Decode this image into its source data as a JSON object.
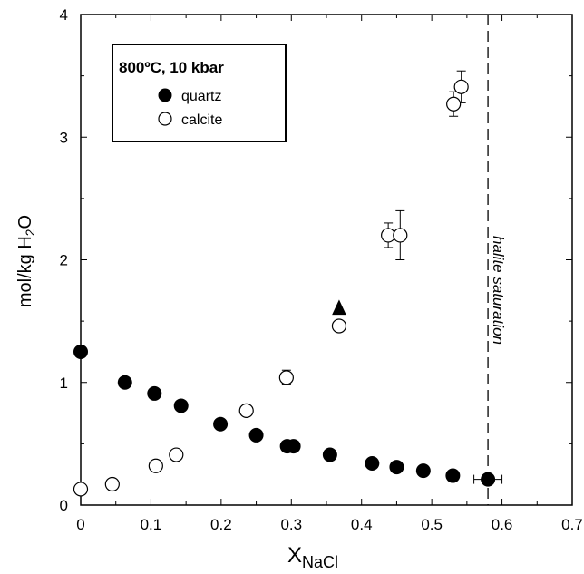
{
  "chart_data": {
    "type": "scatter",
    "ylabel": "mol/kg H",
    "ylabel_sub": "2",
    "ylabel_tail": "O",
    "xlabel": "X",
    "xlabel_sub": "NaCl",
    "xlim": [
      0,
      0.7
    ],
    "ylim": [
      0,
      4
    ],
    "xticks": [
      "0",
      "0.1",
      "0.2",
      "0.3",
      "0.4",
      "0.5",
      "0.6",
      "0.7"
    ],
    "yticks": [
      "0",
      "1",
      "2",
      "3",
      "4"
    ],
    "grid": false,
    "legend": {
      "placement": "top-left",
      "title": "800ºC, 10 kbar",
      "entries": [
        {
          "label": "quartz",
          "marker": "filled-circle"
        },
        {
          "label": "calcite",
          "marker": "open-circle"
        }
      ]
    },
    "series": [
      {
        "name": "quartz",
        "marker": "filled-circle",
        "points": [
          {
            "x": 0.0,
            "y": 1.25
          },
          {
            "x": 0.063,
            "y": 1.0
          },
          {
            "x": 0.105,
            "y": 0.91
          },
          {
            "x": 0.143,
            "y": 0.81
          },
          {
            "x": 0.199,
            "y": 0.66
          },
          {
            "x": 0.25,
            "y": 0.57
          },
          {
            "x": 0.294,
            "y": 0.48
          },
          {
            "x": 0.303,
            "y": 0.48
          },
          {
            "x": 0.355,
            "y": 0.41
          },
          {
            "x": 0.415,
            "y": 0.34
          },
          {
            "x": 0.45,
            "y": 0.31
          },
          {
            "x": 0.488,
            "y": 0.28
          },
          {
            "x": 0.53,
            "y": 0.24
          },
          {
            "x": 0.58,
            "y": 0.21,
            "xerr": 0.02
          }
        ]
      },
      {
        "name": "calcite",
        "marker": "open-circle",
        "points": [
          {
            "x": 0.0,
            "y": 0.13
          },
          {
            "x": 0.045,
            "y": 0.17
          },
          {
            "x": 0.107,
            "y": 0.32
          },
          {
            "x": 0.136,
            "y": 0.41
          },
          {
            "x": 0.236,
            "y": 0.77
          },
          {
            "x": 0.293,
            "y": 1.04,
            "yerr": 0.06
          },
          {
            "x": 0.368,
            "y": 1.46
          },
          {
            "x": 0.438,
            "y": 2.2,
            "yerr": 0.1
          },
          {
            "x": 0.455,
            "y": 2.2,
            "yerr": 0.2
          },
          {
            "x": 0.531,
            "y": 3.27,
            "yerr": 0.1
          },
          {
            "x": 0.542,
            "y": 3.41,
            "yerr": 0.13
          }
        ]
      }
    ],
    "markers": [
      {
        "shape": "filled-triangle-up",
        "x": 0.368,
        "y": 1.6
      }
    ],
    "reference_lines": [
      {
        "orientation": "vertical",
        "x": 0.58,
        "style": "dashed",
        "label": "halite saturation"
      }
    ]
  }
}
